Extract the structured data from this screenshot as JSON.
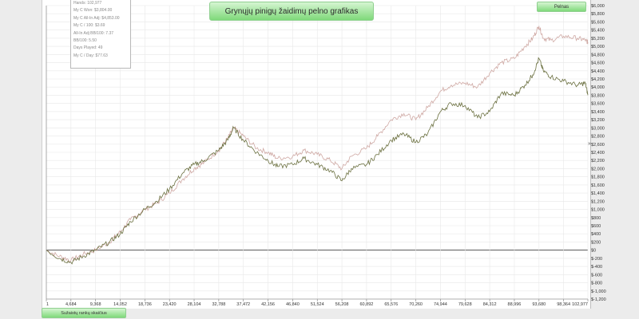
{
  "chart_data": {
    "type": "line",
    "title": "Grynųjų pinigų žaidimų pelno grafikas",
    "legend": "Pelnas",
    "legend_position": "top-right",
    "xlabel": "Sužaistų rankų skaičius",
    "grid": true,
    "xlim": [
      1,
      102977
    ],
    "ylim": [
      -1200,
      6000
    ],
    "x_ticks": [
      "1",
      "4,684",
      "9,368",
      "14,052",
      "18,736",
      "23,420",
      "28,104",
      "32,788",
      "37,472",
      "42,156",
      "46,840",
      "51,524",
      "56,208",
      "60,892",
      "65,576",
      "70,260",
      "74,944",
      "79,628",
      "84,312",
      "88,996",
      "93,680",
      "98,364",
      "102,977"
    ],
    "y_ticks": [
      "$6,000",
      "$5,800",
      "$5,600",
      "$5,400",
      "$5,200",
      "$5,000",
      "$4,800",
      "$4,600",
      "$4,400",
      "$4,200",
      "$4,000",
      "$3,800",
      "$3,600",
      "$3,400",
      "$3,200",
      "$3,000",
      "$2,800",
      "$2,600",
      "$2,400",
      "$2,200",
      "$2,000",
      "$1,800",
      "$1,600",
      "$1,400",
      "$1,200",
      "$1,000",
      "$800",
      "$600",
      "$400",
      "$200",
      "$0",
      "$-200",
      "$-400",
      "$-600",
      "$-800",
      "$-1,000",
      "$-1,200"
    ],
    "series": [
      {
        "color": "#6b7040",
        "x": [
          1,
          2500,
          4684,
          7000,
          9368,
          12000,
          14052,
          16000,
          18736,
          21000,
          23420,
          26000,
          28104,
          30000,
          32788,
          34500,
          35600,
          37472,
          40000,
          42156,
          44000,
          46840,
          49000,
          51524,
          54000,
          56208,
          58000,
          60892,
          63000,
          65576,
          68000,
          70260,
          72500,
          74944,
          77000,
          79628,
          82000,
          84312,
          86500,
          88996,
          91000,
          92500,
          93680,
          94500,
          96000,
          98364,
          101000,
          102500,
          102977
        ],
        "y": [
          0,
          -200,
          -300,
          -150,
          0,
          200,
          400,
          700,
          1000,
          1200,
          1500,
          1900,
          2100,
          2200,
          2450,
          2700,
          3000,
          2700,
          2400,
          2200,
          2050,
          2100,
          2250,
          2100,
          1950,
          1700,
          2000,
          2100,
          2350,
          2700,
          2850,
          2650,
          2850,
          3400,
          3600,
          3550,
          3250,
          3400,
          3850,
          3800,
          4050,
          4300,
          4700,
          4400,
          4250,
          4150,
          4050,
          4100,
          3800
        ]
      },
      {
        "color": "#cfa9a4",
        "x": [
          1,
          2500,
          4684,
          7000,
          9368,
          12000,
          14052,
          16000,
          18736,
          21000,
          23420,
          26000,
          28104,
          30000,
          32788,
          34500,
          35600,
          37472,
          40000,
          42156,
          44000,
          46840,
          49000,
          51524,
          54000,
          56208,
          58000,
          60892,
          63000,
          65576,
          68000,
          70260,
          72500,
          74944,
          77000,
          79628,
          82000,
          84312,
          86500,
          88996,
          91000,
          92500,
          93680,
          94500,
          96000,
          98364,
          101000,
          102500,
          102977
        ],
        "y": [
          0,
          -150,
          -250,
          -100,
          0,
          200,
          450,
          750,
          1000,
          1150,
          1400,
          1750,
          2000,
          2150,
          2450,
          2750,
          3000,
          2800,
          2500,
          2400,
          2250,
          2300,
          2450,
          2350,
          2200,
          2000,
          2300,
          2500,
          2800,
          3200,
          3350,
          3200,
          3500,
          3900,
          4050,
          4100,
          4000,
          4350,
          4600,
          4700,
          5000,
          5200,
          5500,
          5200,
          5150,
          5250,
          5200,
          5150,
          5100
        ]
      }
    ]
  },
  "stats": [
    "Hands: 102,977",
    "My C Won: $3,804.00",
    "My C All-In Adj: $4,853.00",
    "My C / 100: $3.69",
    "All-In Adj BB/100: 7.37",
    "BB/100: 5.50",
    "Days Played: 49",
    "My C / Day: $77.63"
  ],
  "colors": {
    "grid": "#e8e8e8",
    "zero_line": "#555555",
    "pill_green": "#7fd97a"
  }
}
